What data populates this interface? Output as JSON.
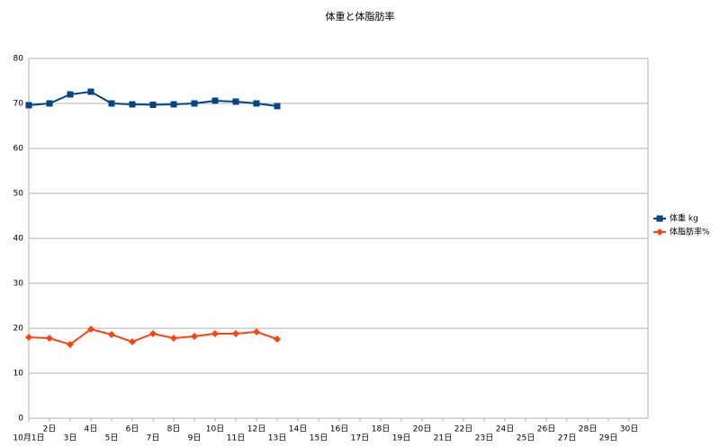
{
  "chart_data": {
    "type": "line",
    "title": "体重と体脂肪率",
    "categories": [
      "10月1日",
      "2日",
      "3日",
      "4日",
      "5日",
      "6日",
      "7日",
      "8日",
      "9日",
      "10日",
      "11日",
      "12日",
      "13日",
      "14日",
      "15日",
      "16日",
      "17日",
      "18日",
      "19日",
      "20日",
      "21日",
      "22日",
      "23日",
      "24日",
      "25日",
      "26日",
      "27日",
      "28日",
      "29日",
      "30日"
    ],
    "series": [
      {
        "name": "体重 kg",
        "color": "#004586",
        "marker": "square",
        "values": [
          69.6,
          70,
          72,
          72.6,
          70,
          69.8,
          69.7,
          69.8,
          70,
          70.6,
          70.4,
          70,
          69.4,
          null,
          null,
          null,
          null,
          null,
          null,
          null,
          null,
          null,
          null,
          null,
          null,
          null,
          null,
          null,
          null,
          null
        ]
      },
      {
        "name": "体脂肪率%",
        "color": "#ff420e",
        "marker": "diamond",
        "values": [
          18,
          17.8,
          16.4,
          19.8,
          18.6,
          17,
          18.8,
          17.8,
          18.2,
          18.8,
          18.8,
          19.2,
          17.6,
          null,
          null,
          null,
          null,
          null,
          null,
          null,
          null,
          null,
          null,
          null,
          null,
          null,
          null,
          null,
          null,
          null
        ]
      }
    ],
    "ylim": [
      0,
      80
    ],
    "yticks": [
      0,
      10,
      20,
      30,
      40,
      50,
      60,
      70,
      80
    ],
    "grid": true,
    "legend": "right"
  }
}
